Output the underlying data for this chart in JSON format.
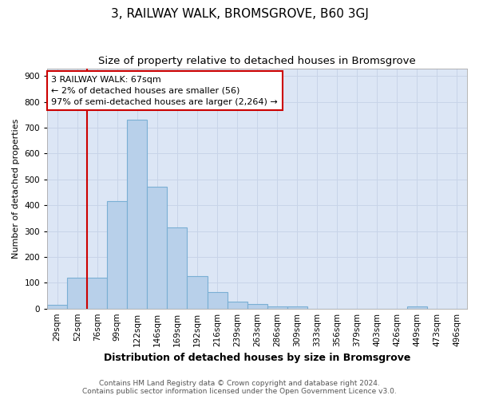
{
  "title": "3, RAILWAY WALK, BROMSGROVE, B60 3GJ",
  "subtitle": "Size of property relative to detached houses in Bromsgrove",
  "xlabel": "Distribution of detached houses by size in Bromsgrove",
  "ylabel": "Number of detached properties",
  "categories": [
    "29sqm",
    "52sqm",
    "76sqm",
    "99sqm",
    "122sqm",
    "146sqm",
    "169sqm",
    "192sqm",
    "216sqm",
    "239sqm",
    "263sqm",
    "286sqm",
    "309sqm",
    "333sqm",
    "356sqm",
    "379sqm",
    "403sqm",
    "426sqm",
    "449sqm",
    "473sqm",
    "496sqm"
  ],
  "values": [
    15,
    120,
    120,
    415,
    730,
    470,
    313,
    127,
    65,
    28,
    18,
    8,
    7,
    0,
    0,
    0,
    0,
    0,
    7,
    0,
    0
  ],
  "bar_color": "#b8d0ea",
  "bar_edge_color": "#7aafd4",
  "vline_x_idx": 1.5,
  "vline_color": "#cc0000",
  "annotation_text": "3 RAILWAY WALK: 67sqm\n← 2% of detached houses are smaller (56)\n97% of semi-detached houses are larger (2,264) →",
  "annotation_box_color": "#ffffff",
  "annotation_box_edge": "#cc0000",
  "ylim": [
    0,
    930
  ],
  "yticks": [
    0,
    100,
    200,
    300,
    400,
    500,
    600,
    700,
    800,
    900
  ],
  "grid_color": "#c8d4e8",
  "bg_color": "#dce6f5",
  "footer1": "Contains HM Land Registry data © Crown copyright and database right 2024.",
  "footer2": "Contains public sector information licensed under the Open Government Licence v3.0.",
  "title_fontsize": 11,
  "subtitle_fontsize": 9.5,
  "xlabel_fontsize": 9,
  "ylabel_fontsize": 8,
  "tick_fontsize": 7.5,
  "annot_fontsize": 8,
  "footer_fontsize": 6.5
}
